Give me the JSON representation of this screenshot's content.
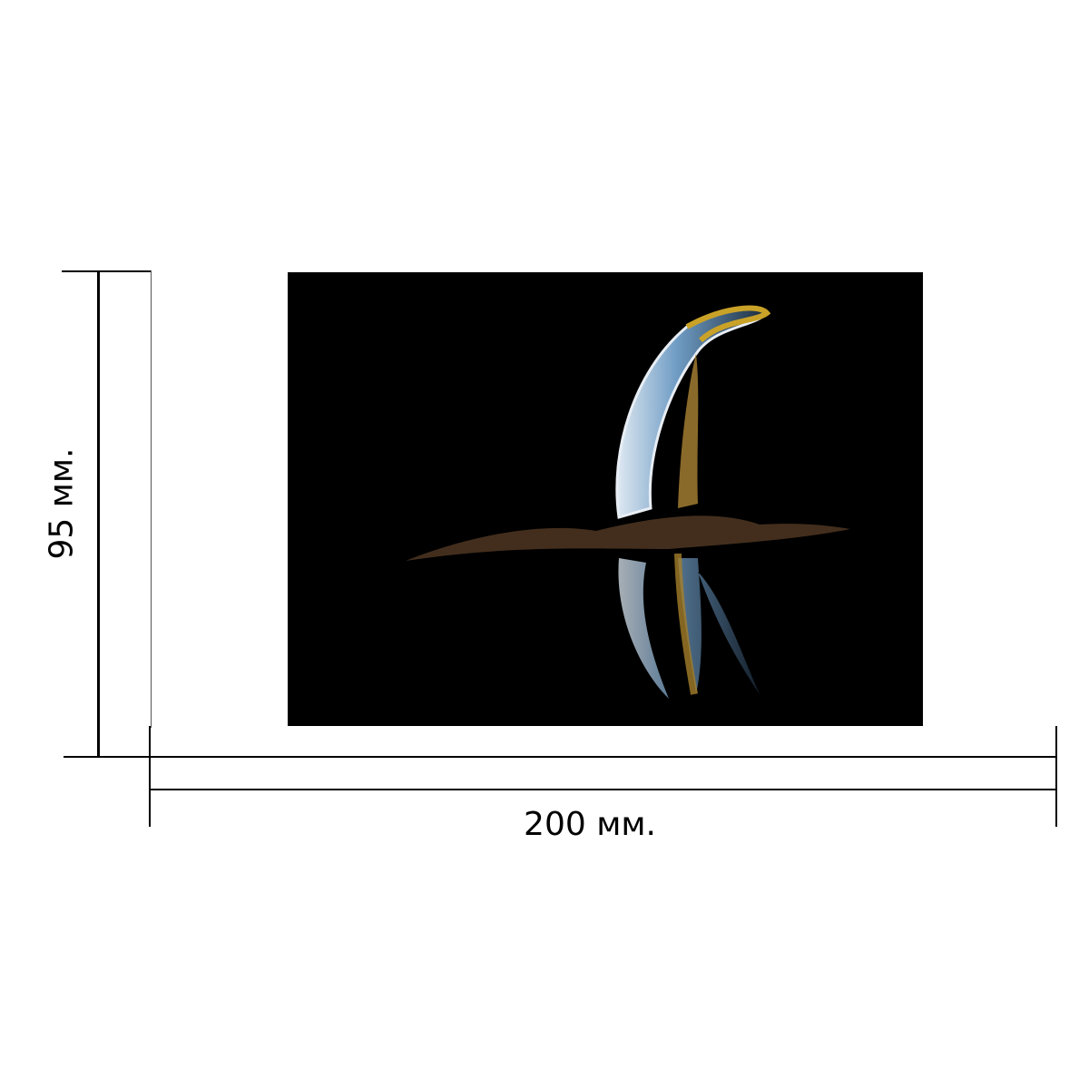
{
  "dimensions": {
    "width_label": "200 мм.",
    "height_label": "95 мм."
  },
  "photo": {
    "subject": "liquid-splash",
    "background_color": "#000000",
    "accent_colors": [
      "#c9a227",
      "#7fa6c9",
      "#5a3a1c"
    ]
  }
}
